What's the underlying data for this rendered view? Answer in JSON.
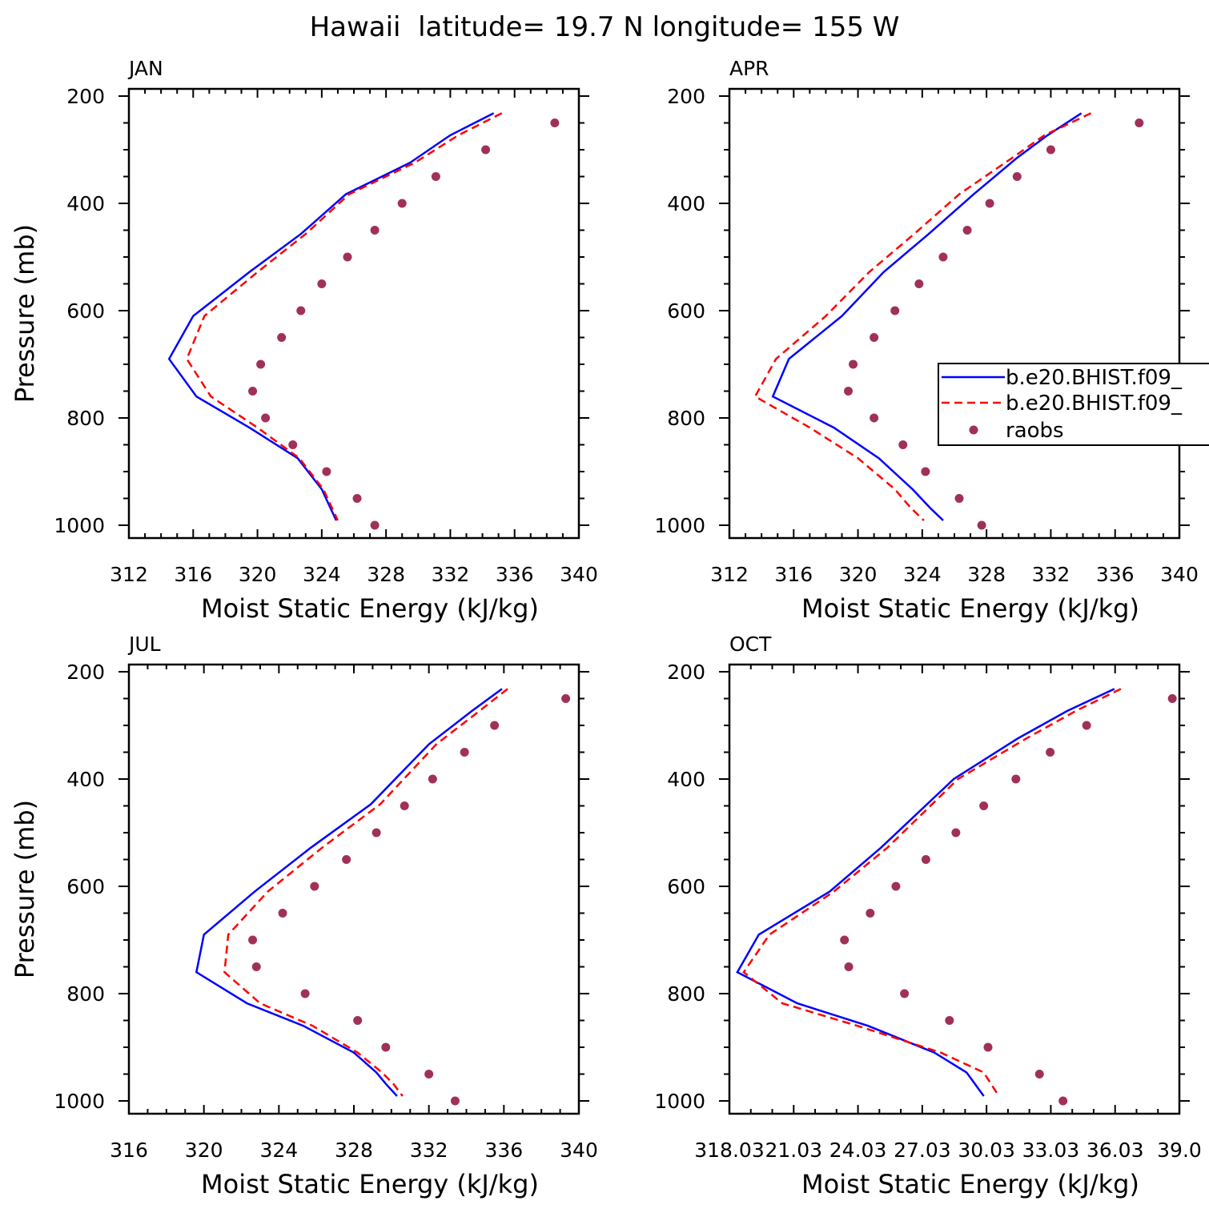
{
  "figure_title": "Hawaii  latitude= 19.7 N longitude= 155 W",
  "colors": {
    "model_1": "#0000ff",
    "model_2": "#ff0000",
    "raobs": "#a0305a"
  },
  "legend": {
    "panel": "APR",
    "entries": [
      {
        "label": "b.e20.BHIST.f09_",
        "style": "solid",
        "color": "#0000ff"
      },
      {
        "label": "b.e20.BHIST.f09_",
        "style": "dashed",
        "color": "#ff0000"
      },
      {
        "label": "raobs",
        "style": "marker",
        "color": "#a0305a"
      }
    ]
  },
  "chart_data": [
    {
      "type": "line",
      "title": "JAN",
      "xlabel": "Moist Static Energy (kJ/kg)",
      "ylabel": "Pressure (mb)",
      "xlim": [
        312,
        340
      ],
      "ylim": [
        1000,
        200
      ],
      "xticks": [
        312,
        316,
        320,
        324,
        328,
        332,
        336,
        340
      ],
      "xtick_labels": [
        "312",
        "316",
        "320",
        "324",
        "328",
        "332",
        "336",
        "340"
      ],
      "yticks": [
        200,
        400,
        600,
        800,
        1000
      ],
      "ytick_labels": [
        "200",
        "400",
        "600",
        "800",
        "1000"
      ],
      "series": [
        {
          "name": "b.e20.BHIST.f09_",
          "style": "solid",
          "x": [
            334.7,
            332.0,
            329.5,
            325.5,
            322.7,
            319.5,
            316.0,
            314.5,
            316.2,
            319.5,
            322.5,
            324.0,
            324.9
          ],
          "y": [
            232,
            273,
            324,
            383,
            457,
            528,
            610,
            690,
            760,
            818,
            875,
            933,
            991
          ]
        },
        {
          "name": "b.e20.BHIST.f09_",
          "style": "dashed",
          "x": [
            335.2,
            332.5,
            329.8,
            325.7,
            323.0,
            320.0,
            316.7,
            315.6,
            317.1,
            320.0,
            322.6,
            324.1,
            325.0
          ],
          "y": [
            232,
            273,
            324,
            383,
            457,
            528,
            610,
            690,
            760,
            818,
            875,
            933,
            991
          ]
        },
        {
          "name": "raobs",
          "style": "marker",
          "x": [
            338.5,
            334.2,
            331.1,
            329.0,
            327.3,
            325.6,
            324.0,
            322.7,
            321.5,
            320.2,
            319.7,
            320.5,
            322.2,
            324.3,
            326.2,
            327.3
          ],
          "y": [
            250,
            300,
            350,
            400,
            450,
            500,
            550,
            600,
            650,
            700,
            750,
            800,
            850,
            900,
            950,
            1000
          ]
        }
      ]
    },
    {
      "type": "line",
      "title": "APR",
      "xlabel": "Moist Static Energy (kJ/kg)",
      "ylabel": "",
      "xlim": [
        312,
        340
      ],
      "ylim": [
        1000,
        200
      ],
      "xticks": [
        312,
        316,
        320,
        324,
        328,
        332,
        336,
        340
      ],
      "xtick_labels": [
        "312",
        "316",
        "320",
        "324",
        "328",
        "332",
        "336",
        "340"
      ],
      "yticks": [
        200,
        400,
        600,
        800,
        1000
      ],
      "ytick_labels": [
        "200",
        "400",
        "600",
        "800",
        "1000"
      ],
      "series": [
        {
          "name": "b.e20.BHIST.f09_",
          "style": "solid",
          "x": [
            333.9,
            331.8,
            329.9,
            327.2,
            324.4,
            321.6,
            319.0,
            315.7,
            314.7,
            318.5,
            321.3,
            323.4,
            324.5,
            325.3
          ],
          "y": [
            232,
            273,
            315,
            383,
            457,
            528,
            610,
            690,
            760,
            818,
            875,
            933,
            968,
            991
          ]
        },
        {
          "name": "b.e20.BHIST.f09_",
          "style": "dashed",
          "x": [
            334.5,
            331.6,
            329.6,
            326.3,
            323.5,
            320.7,
            318.0,
            314.9,
            313.6,
            317.0,
            320.0,
            322.3,
            323.3,
            324.1
          ],
          "y": [
            232,
            273,
            315,
            383,
            457,
            528,
            610,
            690,
            760,
            818,
            875,
            933,
            968,
            991
          ]
        },
        {
          "name": "raobs",
          "style": "marker",
          "x": [
            337.5,
            332.0,
            329.9,
            328.2,
            326.8,
            325.3,
            323.8,
            322.3,
            321.0,
            319.7,
            319.4,
            321.0,
            322.8,
            324.2,
            326.3,
            327.7
          ],
          "y": [
            250,
            300,
            350,
            400,
            450,
            500,
            550,
            600,
            650,
            700,
            750,
            800,
            850,
            900,
            950,
            1000
          ]
        }
      ]
    },
    {
      "type": "line",
      "title": "JUL",
      "xlabel": "Moist Static Energy (kJ/kg)",
      "ylabel": "Pressure (mb)",
      "xlim": [
        316,
        340
      ],
      "ylim": [
        1000,
        200
      ],
      "xticks": [
        316,
        320,
        324,
        328,
        332,
        336,
        340
      ],
      "xtick_labels": [
        "316",
        "320",
        "324",
        "328",
        "332",
        "336",
        "340"
      ],
      "yticks": [
        200,
        400,
        600,
        800,
        1000
      ],
      "ytick_labels": [
        "200",
        "400",
        "600",
        "800",
        "1000"
      ],
      "series": [
        {
          "name": "b.e20.BHIST.f09_",
          "style": "solid",
          "x": [
            335.9,
            334.3,
            332.0,
            328.9,
            325.7,
            322.7,
            320.0,
            319.6,
            322.3,
            325.3,
            328.0,
            329.2,
            329.7,
            330.3
          ],
          "y": [
            232,
            273,
            335,
            447,
            528,
            610,
            690,
            760,
            818,
            860,
            910,
            947,
            968,
            991
          ]
        },
        {
          "name": "b.e20.BHIST.f09_",
          "style": "dashed",
          "x": [
            336.2,
            334.7,
            332.4,
            329.4,
            326.3,
            323.4,
            321.3,
            321.1,
            323.0,
            325.8,
            328.2,
            329.5,
            330.1,
            330.6
          ],
          "y": [
            232,
            273,
            335,
            447,
            528,
            610,
            690,
            760,
            818,
            860,
            910,
            947,
            968,
            991
          ]
        },
        {
          "name": "raobs",
          "style": "marker",
          "x": [
            339.3,
            335.5,
            333.9,
            332.2,
            330.7,
            329.2,
            327.6,
            325.9,
            324.2,
            322.6,
            322.8,
            325.4,
            328.2,
            329.7,
            332.0,
            333.4
          ],
          "y": [
            250,
            300,
            350,
            400,
            450,
            500,
            550,
            600,
            650,
            700,
            750,
            800,
            850,
            900,
            950,
            1000
          ]
        }
      ]
    },
    {
      "type": "line",
      "title": "OCT",
      "xlabel": "Moist Static Energy (kJ/kg)",
      "ylabel": "",
      "xlim": [
        318.03,
        339.03
      ],
      "ylim": [
        1000,
        200
      ],
      "xticks": [
        318.03,
        321.03,
        324.03,
        327.03,
        330.03,
        333.03,
        336.03,
        339.03
      ],
      "xtick_labels": [
        "318.03",
        "21.03",
        "24.03",
        "27.03",
        "30.03",
        "33.03",
        "36.03",
        "39.0"
      ],
      "yticks": [
        200,
        400,
        600,
        800,
        1000
      ],
      "ytick_labels": [
        "200",
        "400",
        "600",
        "800",
        "1000"
      ],
      "series": [
        {
          "name": "b.e20.BHIST.f09_",
          "style": "solid",
          "x": [
            336.0,
            333.8,
            331.5,
            328.5,
            325.1,
            322.7,
            319.4,
            318.4,
            321.2,
            324.5,
            327.6,
            329.1,
            329.9
          ],
          "y": [
            232,
            273,
            324,
            400,
            528,
            610,
            690,
            760,
            818,
            860,
            910,
            947,
            991
          ]
        },
        {
          "name": "b.e20.BHIST.f09_",
          "style": "dashed",
          "x": [
            336.3,
            334.2,
            331.9,
            328.7,
            325.4,
            322.9,
            319.9,
            318.7,
            320.5,
            324.0,
            327.9,
            329.9,
            330.6
          ],
          "y": [
            232,
            273,
            324,
            400,
            528,
            610,
            690,
            760,
            818,
            860,
            910,
            947,
            991
          ]
        },
        {
          "name": "raobs",
          "style": "marker",
          "x": [
            338.7,
            334.7,
            333.0,
            331.4,
            329.9,
            328.6,
            327.2,
            325.8,
            324.6,
            323.4,
            323.6,
            326.2,
            328.3,
            330.1,
            332.5,
            333.6
          ],
          "y": [
            250,
            300,
            350,
            400,
            450,
            500,
            550,
            600,
            650,
            700,
            750,
            800,
            850,
            900,
            950,
            1000
          ]
        }
      ]
    }
  ]
}
